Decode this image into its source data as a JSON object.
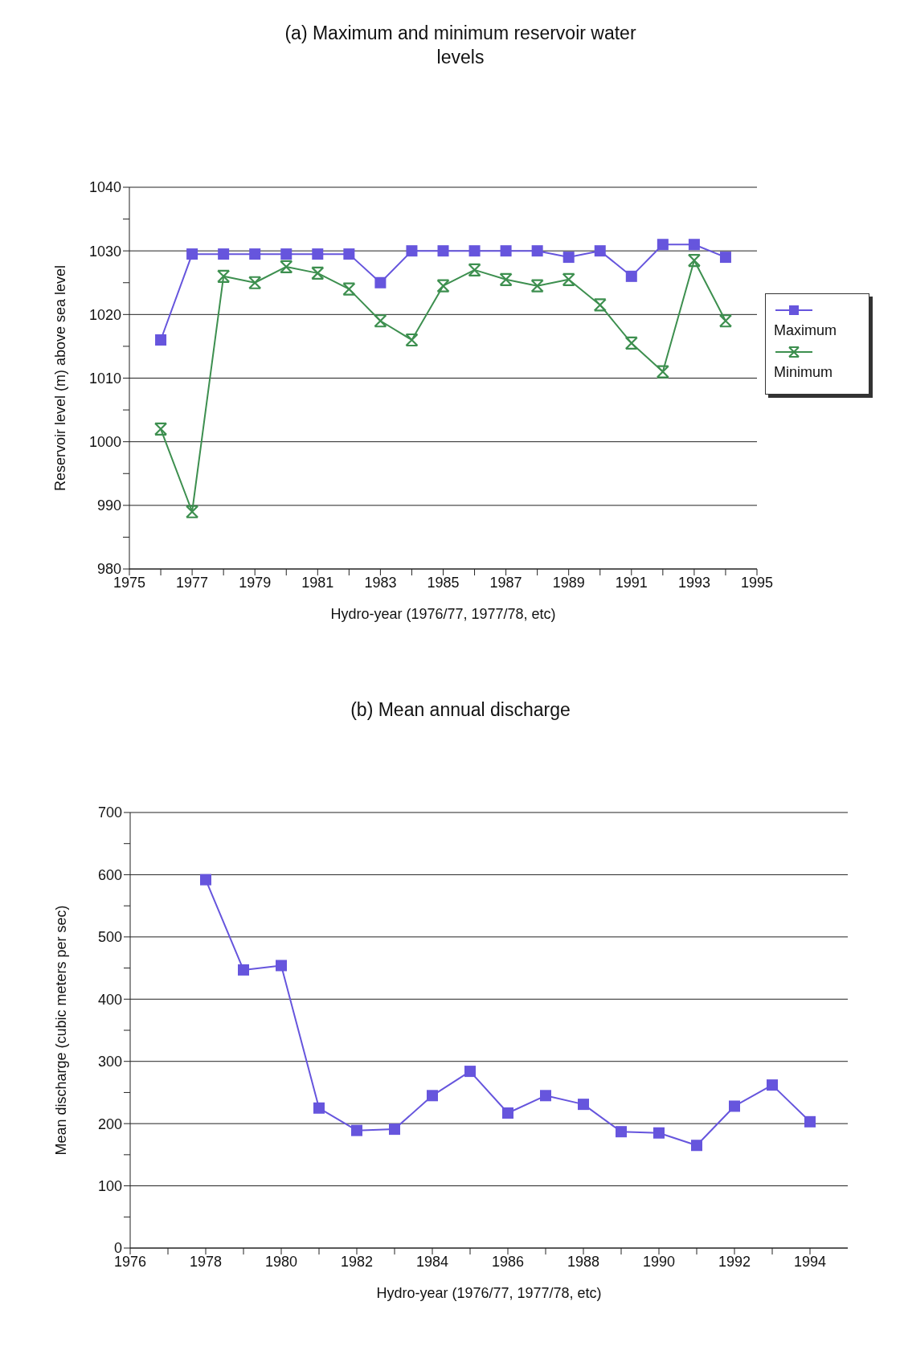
{
  "chart_data": [
    {
      "type": "line",
      "title": "(a) Maximum and minimum reservoir water levels",
      "xlabel": "Hydro-year (1976/77, 1977/78, etc)",
      "ylabel": "Reservoir level (m) above sea level",
      "x": [
        1976,
        1977,
        1978,
        1979,
        1980,
        1981,
        1982,
        1983,
        1984,
        1985,
        1986,
        1987,
        1988,
        1989,
        1990,
        1991,
        1992,
        1993,
        1994
      ],
      "series": [
        {
          "name": "Maximum",
          "color": "#6655dd",
          "marker": "square",
          "values": [
            1016,
            1029.5,
            1029.5,
            1029.5,
            1029.5,
            1029.5,
            1029.5,
            1025,
            1030,
            1030,
            1030,
            1030,
            1030,
            1029,
            1030,
            1026,
            1031,
            1031,
            1029
          ]
        },
        {
          "name": "Minimum",
          "color": "#3d8f4f",
          "marker": "cross",
          "values": [
            1002,
            989,
            1026,
            1025,
            1027.5,
            1026.5,
            1024,
            1019,
            1016,
            1024.5,
            1027,
            1025.5,
            1024.5,
            1025.5,
            1021.5,
            1015.5,
            1011,
            1028.5,
            1019
          ]
        }
      ],
      "xlim": [
        1975,
        1995
      ],
      "xticks": [
        1975,
        {
          "value": 1976,
          "label": null
        },
        1977,
        {
          "value": 1978,
          "label": null
        },
        1979,
        {
          "value": 1980,
          "label": null
        },
        1981,
        {
          "value": 1982,
          "label": null
        },
        1983,
        {
          "value": 1984,
          "label": null
        },
        1985,
        {
          "value": 1986,
          "label": null
        },
        1987,
        {
          "value": 1988,
          "label": null
        },
        1989,
        {
          "value": 1990,
          "label": null
        },
        1991,
        {
          "value": 1992,
          "label": null
        },
        1993,
        {
          "value": 1994,
          "label": null
        },
        1995
      ],
      "ylim": [
        980,
        1040
      ],
      "yticks": [
        980,
        {
          "value": 985,
          "label": null
        },
        990,
        {
          "value": 995,
          "label": null
        },
        1000,
        {
          "value": 1005,
          "label": null
        },
        1010,
        {
          "value": 1015,
          "label": null
        },
        1020,
        {
          "value": 1025,
          "label": null
        },
        1030,
        {
          "value": 1035,
          "label": null
        },
        1040
      ],
      "grid": "y",
      "legend": "right"
    },
    {
      "type": "line",
      "title": "(b) Mean annual discharge",
      "xlabel": "Hydro-year (1976/77, 1977/78, etc)",
      "ylabel": "Mean discharge (cubic meters per sec)",
      "x": [
        1978,
        1979,
        1980,
        1981,
        1982,
        1983,
        1984,
        1985,
        1986,
        1987,
        1988,
        1989,
        1990,
        1991,
        1992,
        1993,
        1994
      ],
      "series": [
        {
          "color": "#6655dd",
          "values": [
            592,
            447,
            454,
            225,
            189,
            191,
            245,
            284,
            217,
            245,
            231,
            187,
            185,
            165,
            228,
            262,
            203
          ]
        }
      ],
      "marker": "square",
      "xlim": [
        1976,
        1995
      ],
      "xticks": [
        1976,
        {
          "value": 1977,
          "label": null
        },
        1978,
        {
          "value": 1979,
          "label": null
        },
        1980,
        {
          "value": 1981,
          "label": null
        },
        1982,
        {
          "value": 1983,
          "label": null
        },
        1984,
        {
          "value": 1985,
          "label": null
        },
        1986,
        {
          "value": 1987,
          "label": null
        },
        1988,
        {
          "value": 1989,
          "label": null
        },
        1990,
        {
          "value": 1991,
          "label": null
        },
        1992,
        {
          "value": 1993,
          "label": null
        },
        1994
      ],
      "ylim": [
        0,
        700
      ],
      "yticks": [
        0,
        {
          "value": 50,
          "label": null
        },
        100,
        {
          "value": 150,
          "label": null
        },
        200,
        {
          "value": 250,
          "label": null
        },
        300,
        {
          "value": 350,
          "label": null
        },
        400,
        {
          "value": 450,
          "label": null
        },
        500,
        {
          "value": 550,
          "label": null
        },
        600,
        {
          "value": 650,
          "label": null
        },
        700
      ],
      "grid": "y",
      "legend": false
    }
  ]
}
